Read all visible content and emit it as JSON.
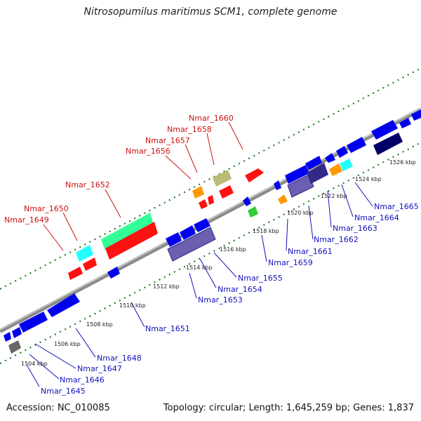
{
  "title": "Nitrosopumilus maritimus SCM1, complete genome",
  "footer": {
    "accession": "Accession: NC_010085",
    "summary": "Topology: circular; Length: 1,645,259 bp; Genes: 1,837"
  },
  "colors": {
    "red": "#ff1111",
    "green": "#33ff99",
    "cyan": "#22ffff",
    "orange": "#ff9900",
    "khaki": "#bbbb77",
    "blue": "#0000ee",
    "navy": "#000066",
    "purple": "#6a5fb0",
    "dark_purple": "#332a88",
    "gray": "#666666",
    "bright_green": "#33cc33",
    "backbone": "#999999",
    "dots": "#117711"
  },
  "tick_labels": [
    "1504 kbp",
    "1506 kbp",
    "1508 kbp",
    "1510 kbp",
    "1512 kbp",
    "1514 kbp",
    "1516 kbp",
    "1518 kbp",
    "1520 kbp",
    "1522 kbp",
    "1524 kbp",
    "1526 kbp"
  ],
  "top_labels": [
    "Nmar_1649",
    "Nmar_1650",
    "Nmar_1652",
    "Nmar_1656",
    "Nmar_1657",
    "Nmar_1658",
    "Nmar_1660"
  ],
  "bottom_labels": [
    "Nmar_1645",
    "Nmar_1646",
    "Nmar_1647",
    "Nmar_1648",
    "Nmar_1651",
    "Nmar_1653",
    "Nmar_1654",
    "Nmar_1655",
    "Nmar_1659",
    "Nmar_1661",
    "Nmar_1662",
    "Nmar_1663",
    "Nmar_1664",
    "Nmar_1665"
  ]
}
